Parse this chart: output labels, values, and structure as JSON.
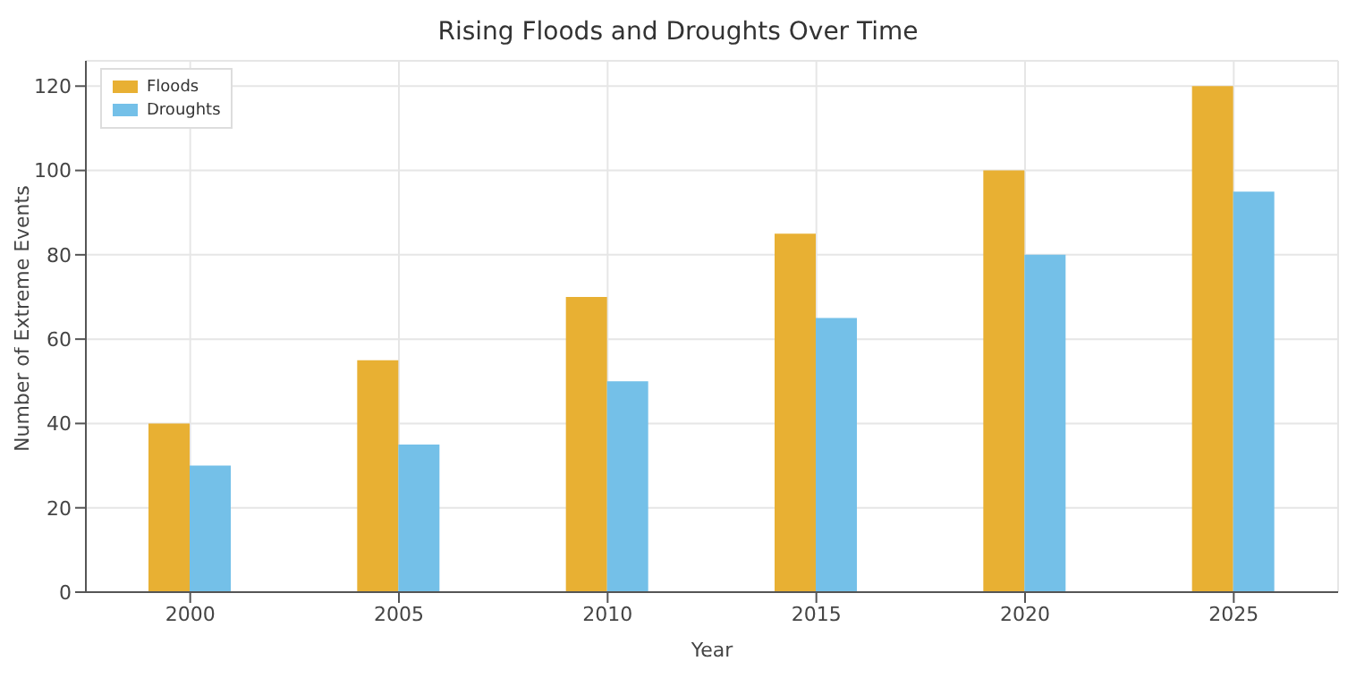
{
  "chart_data": {
    "type": "bar",
    "title": "Rising Floods and Droughts Over Time",
    "xlabel": "Year",
    "ylabel": "Number of Extreme Events",
    "categories": [
      "2000",
      "2005",
      "2010",
      "2015",
      "2020",
      "2025"
    ],
    "series": [
      {
        "name": "Floods",
        "color": "#e8b033",
        "values": [
          40,
          55,
          70,
          85,
          100,
          120
        ]
      },
      {
        "name": "Droughts",
        "color": "#74c0e8",
        "values": [
          30,
          35,
          50,
          65,
          80,
          95
        ]
      }
    ],
    "ylim": [
      0,
      126
    ],
    "yticks": [
      0,
      20,
      40,
      60,
      80,
      100,
      120
    ],
    "grid": true,
    "legend": "top left"
  }
}
